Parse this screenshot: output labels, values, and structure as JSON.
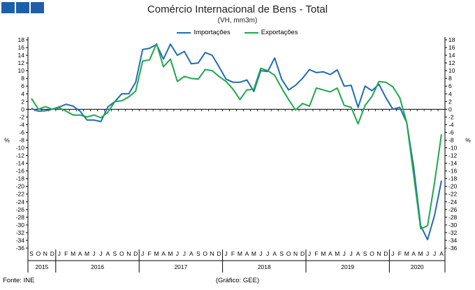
{
  "chart_data": {
    "type": "line",
    "title": "Comércio Internacional de Bens - Total",
    "subtitle": "(VH, mm3m)",
    "ylabel_left": "%",
    "ylabel_right": "%",
    "ylim": [
      -36,
      18
    ],
    "ytick_step": 2,
    "grid": false,
    "legend_position": "top-center",
    "month_labels": [
      "S",
      "O",
      "N",
      "D",
      "J",
      "F",
      "M",
      "A",
      "M",
      "J",
      "J",
      "A",
      "S",
      "O",
      "N",
      "D",
      "J",
      "F",
      "M",
      "A",
      "M",
      "J",
      "J",
      "A",
      "S",
      "O",
      "N",
      "D",
      "J",
      "F",
      "M",
      "A",
      "M",
      "J",
      "J",
      "A",
      "S",
      "O",
      "N",
      "D",
      "J",
      "F",
      "M",
      "A",
      "M",
      "J",
      "J",
      "A",
      "S",
      "O",
      "N",
      "D",
      "J",
      "F",
      "M",
      "A",
      "M",
      "J",
      "J",
      "A"
    ],
    "year_groups": [
      {
        "label": "2015",
        "count": 4
      },
      {
        "label": "2016",
        "count": 12
      },
      {
        "label": "2017",
        "count": 12
      },
      {
        "label": "2018",
        "count": 12
      },
      {
        "label": "2019",
        "count": 12
      },
      {
        "label": "2020",
        "count": 8
      }
    ],
    "series": [
      {
        "name": "Importações",
        "color": "#1f6db0",
        "values": [
          0.2,
          -0.5,
          -0.4,
          0.0,
          0.6,
          1.3,
          0.8,
          -0.5,
          -2.8,
          -2.8,
          -3.2,
          0.6,
          2.0,
          4.0,
          4.0,
          7.0,
          15.5,
          15.8,
          16.8,
          13.0,
          16.9,
          14.0,
          15.0,
          11.8,
          12.0,
          14.7,
          14.0,
          11.0,
          7.8,
          7.0,
          7.0,
          7.6,
          4.6,
          10.0,
          9.8,
          13.3,
          7.8,
          5.0,
          6.2,
          8.0,
          10.3,
          9.5,
          9.7,
          9.0,
          10.2,
          6.0,
          6.2,
          0.5,
          6.0,
          4.8,
          6.5,
          3.0,
          0.0,
          0.5,
          -3.5,
          -15.0,
          -30.2,
          -33.8,
          -27.5,
          -18.5
        ]
      },
      {
        "name": "Exportações",
        "color": "#1fa84a",
        "values": [
          2.8,
          0.0,
          0.7,
          0.0,
          0.4,
          -0.5,
          -1.5,
          -1.5,
          -2.0,
          -1.5,
          -2.2,
          -0.8,
          2.0,
          2.2,
          3.2,
          4.7,
          12.5,
          12.8,
          17.0,
          11.0,
          13.0,
          7.2,
          8.5,
          8.0,
          7.8,
          10.3,
          10.0,
          8.5,
          7.2,
          5.2,
          2.5,
          5.0,
          5.2,
          10.6,
          10.0,
          8.8,
          5.5,
          2.5,
          -0.2,
          1.5,
          0.8,
          5.5,
          5.0,
          4.5,
          5.5,
          1.0,
          0.5,
          -3.8,
          1.0,
          3.3,
          7.2,
          7.0,
          5.8,
          3.0,
          -3.5,
          -17.0,
          -31.0,
          -30.2,
          -19.0,
          -6.5
        ]
      }
    ],
    "source_label": "Fonte: INE",
    "credit_label": "(Gráfico: GEE)"
  }
}
